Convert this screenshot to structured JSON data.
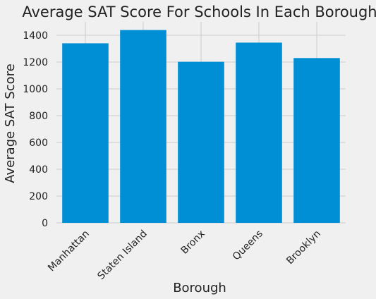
{
  "chart_data": {
    "type": "bar",
    "title": "Average SAT Score For Schools In Each Borough",
    "xlabel": "Borough",
    "ylabel": "Average SAT Score",
    "categories": [
      "Manhattan",
      "Staten Island",
      "Bronx",
      "Queens",
      "Brooklyn"
    ],
    "values": [
      1340,
      1439,
      1202,
      1345,
      1230
    ],
    "ylim": [
      0,
      1500
    ],
    "yticks": [
      0,
      200,
      400,
      600,
      800,
      1000,
      1200,
      1400
    ],
    "grid": true,
    "bar_color": "#008fd5",
    "background_color": "#f0f0f0"
  }
}
